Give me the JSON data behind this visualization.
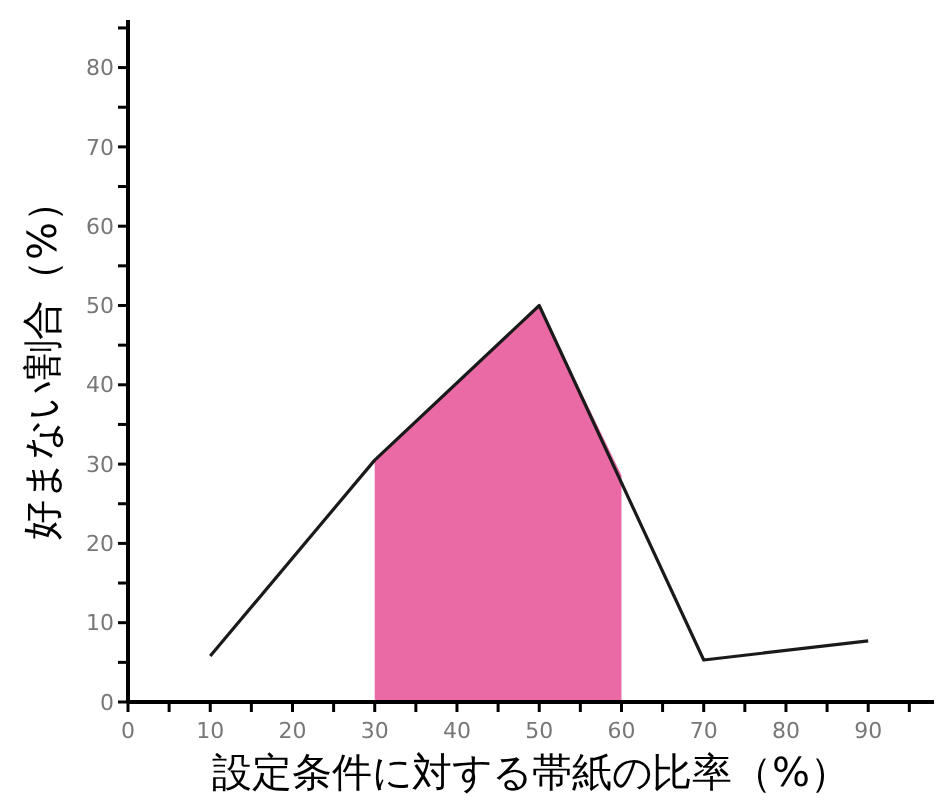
{
  "chart_data": {
    "type": "line",
    "xlabel": "設定条件に対する帯紙の比率（%）",
    "ylabel": "好まない割合（%）",
    "xlim": [
      0,
      98
    ],
    "ylim": [
      0,
      86
    ],
    "xticks": [
      0,
      {
        "value": 5,
        "label": null
      },
      10,
      {
        "value": 15,
        "label": null
      },
      20,
      {
        "value": 25,
        "label": null
      },
      30,
      {
        "value": 35,
        "label": null
      },
      40,
      {
        "value": 45,
        "label": null
      },
      50,
      {
        "value": 55,
        "label": null
      },
      60,
      {
        "value": 65,
        "label": null
      },
      70,
      {
        "value": 75,
        "label": null
      },
      80,
      {
        "value": 85,
        "label": null
      },
      90,
      {
        "value": 95,
        "label": null
      }
    ],
    "yticks": [
      0,
      {
        "value": 5,
        "label": null
      },
      10,
      {
        "value": 15,
        "label": null
      },
      20,
      {
        "value": 25,
        "label": null
      },
      30,
      {
        "value": 35,
        "label": null
      },
      40,
      {
        "value": 45,
        "label": null
      },
      50,
      {
        "value": 55,
        "label": null
      },
      60,
      {
        "value": 65,
        "label": null
      },
      70,
      {
        "value": 75,
        "label": null
      },
      80,
      {
        "value": 85,
        "label": null
      }
    ],
    "series": [
      {
        "type": "area",
        "color": "#ea6aa5",
        "x": [
          30,
          50,
          60
        ],
        "values": [
          30.5,
          50,
          28.6
        ]
      },
      {
        "color": "#1a1a1a",
        "x": [
          10,
          30,
          50,
          70,
          90
        ],
        "values": [
          5.8,
          30.5,
          50,
          5.3,
          7.7
        ]
      }
    ],
    "marker": "none",
    "line_style": "solid",
    "grid": false
  }
}
